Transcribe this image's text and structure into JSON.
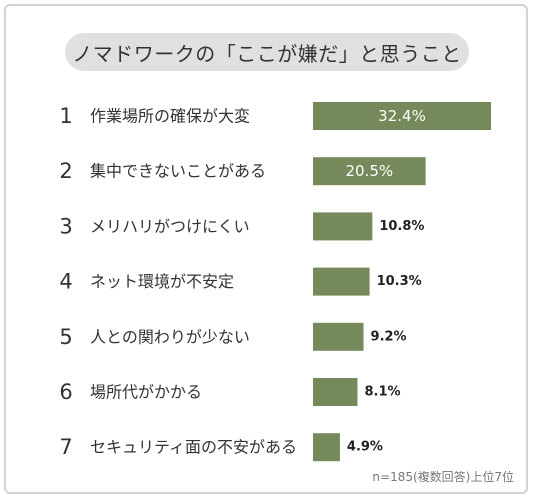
{
  "chart_data": {
    "type": "bar",
    "orientation": "horizontal",
    "title": "ノマドワークの「ここが嫌だ」と思うこと",
    "ranks": [
      "1",
      "2",
      "3",
      "4",
      "5",
      "6",
      "7"
    ],
    "categories": [
      "作業場所の確保が大変",
      "集中できないことがある",
      "メリハリがつけにくい",
      "ネット環境が不安定",
      "人との関わりが少ない",
      "場所代がかかる",
      "セキュリティ面の不安がある"
    ],
    "values": [
      32.4,
      20.5,
      10.8,
      10.3,
      9.2,
      8.1,
      4.9
    ],
    "value_labels": [
      "32.4%",
      "20.5%",
      "10.8%",
      "10.3%",
      "9.2%",
      "8.1%",
      "4.9%"
    ],
    "xlim": [
      0,
      32.4
    ],
    "grid": false,
    "note": "n=185(複数回答)上位7位",
    "colors": {
      "bar": "#76895a",
      "bar_label_inside": "#ffffff",
      "bar_label_outside": "#222222",
      "text": "#333333",
      "title_bg": "#e0e0e0"
    }
  }
}
